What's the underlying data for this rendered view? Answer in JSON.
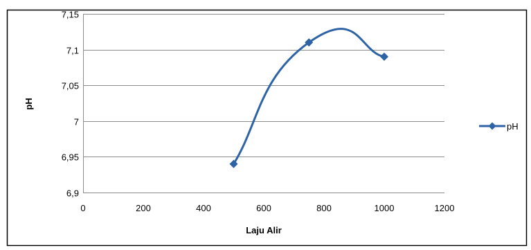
{
  "chart_data": {
    "type": "line",
    "title": "",
    "xlabel": "Laju Alir",
    "ylabel": "pH",
    "xlim": [
      0,
      1200
    ],
    "ylim": [
      6.9,
      7.15
    ],
    "x_ticks": [
      0,
      200,
      400,
      600,
      800,
      1000,
      1200
    ],
    "x_tick_labels": [
      "0",
      "200",
      "400",
      "600",
      "800",
      "1000",
      "1200"
    ],
    "y_ticks": [
      6.9,
      6.95,
      7.0,
      7.05,
      7.1,
      7.15
    ],
    "y_tick_labels": [
      "6,9",
      "6,95",
      "7",
      "7,05",
      "7,1",
      "7,15"
    ],
    "grid": {
      "horizontal": true,
      "vertical": false
    },
    "smooth": true,
    "legend_position": "right",
    "series": [
      {
        "name": "pH",
        "color": "#2E63A6",
        "marker": "diamond",
        "x": [
          500,
          750,
          1000
        ],
        "y": [
          6.94,
          7.11,
          7.09
        ]
      }
    ]
  }
}
